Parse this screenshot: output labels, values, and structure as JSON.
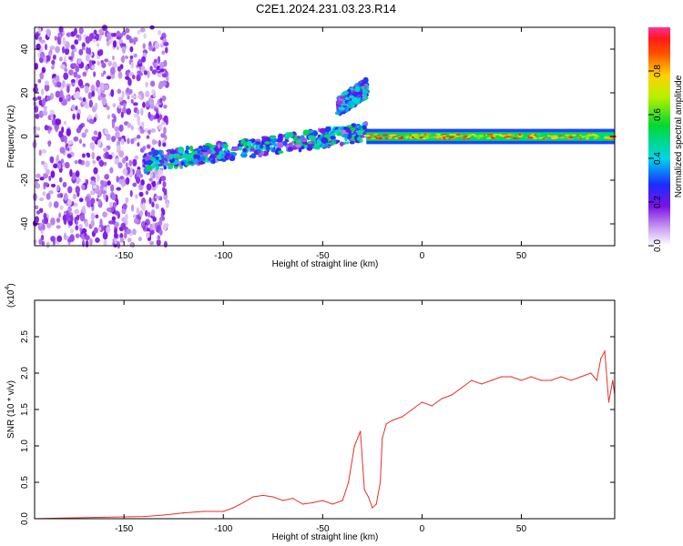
{
  "title": "C2E1.2024.231.03.23.R14",
  "chart_data": [
    {
      "type": "heatmap",
      "xlabel": "Height of straight line (km)",
      "ylabel": "Frequency (Hz)",
      "xlim": [
        -195,
        97
      ],
      "ylim": [
        -50,
        50
      ],
      "xticks": [
        -150,
        -100,
        -50,
        0,
        50
      ],
      "yticks": [
        -40,
        -20,
        0,
        20,
        40
      ],
      "colorbar": {
        "label": "Normalized spectral amplitude",
        "range": [
          0,
          1
        ],
        "ticks": [
          "0.0",
          "0.2",
          "0.4",
          "0.6",
          "0.8"
        ]
      },
      "features": [
        {
          "region": "noise",
          "x_range": [
            -195,
            -128
          ],
          "freq_range": [
            -50,
            50
          ],
          "amplitude": 0.12
        },
        {
          "region": "main-trace",
          "x_range": [
            -140,
            -28
          ],
          "freq_start": -12,
          "freq_end": 2,
          "amplitude": 0.35
        },
        {
          "region": "side-branch",
          "x_range": [
            -42,
            -28
          ],
          "freq_start": 14,
          "freq_end": 22,
          "amplitude": 0.3
        },
        {
          "region": "steady-trace",
          "x_range": [
            -28,
            97
          ],
          "freq": 0,
          "amplitude": 0.6
        }
      ]
    },
    {
      "type": "line",
      "xlabel": "Height of straight line (km)",
      "ylabel": "SNR (10 * v/v)",
      "y_multiplier": "(x10",
      "y_multiplier_exp": "4",
      "y_multiplier_close": ")",
      "xlim": [
        -195,
        97
      ],
      "ylim": [
        0,
        3.0
      ],
      "xticks": [
        -150,
        -100,
        -50,
        0,
        50
      ],
      "yticks": [
        "0.0",
        "0.5",
        "1.0",
        "1.5",
        "2.0",
        "2.5"
      ],
      "series": [
        {
          "color": "#e8302a",
          "x": [
            -195,
            -180,
            -160,
            -140,
            -130,
            -120,
            -110,
            -100,
            -95,
            -90,
            -85,
            -80,
            -75,
            -70,
            -65,
            -60,
            -55,
            -50,
            -45,
            -40,
            -37,
            -34,
            -31,
            -29,
            -27,
            -25,
            -23,
            -21,
            -20,
            -18,
            -15,
            -10,
            -5,
            0,
            5,
            10,
            15,
            20,
            25,
            30,
            35,
            40,
            45,
            50,
            55,
            60,
            65,
            70,
            75,
            80,
            85,
            88,
            90,
            92,
            94,
            96,
            97
          ],
          "y": [
            0.0,
            0.01,
            0.02,
            0.03,
            0.05,
            0.08,
            0.1,
            0.1,
            0.15,
            0.22,
            0.3,
            0.32,
            0.3,
            0.25,
            0.28,
            0.2,
            0.22,
            0.25,
            0.2,
            0.25,
            0.5,
            1.0,
            1.2,
            0.4,
            0.3,
            0.15,
            0.2,
            0.5,
            1.1,
            1.3,
            1.35,
            1.4,
            1.5,
            1.6,
            1.55,
            1.65,
            1.7,
            1.8,
            1.9,
            1.85,
            1.9,
            1.95,
            1.95,
            1.9,
            1.95,
            1.9,
            1.9,
            1.95,
            1.9,
            1.95,
            2.0,
            1.9,
            2.2,
            2.3,
            1.6,
            1.9,
            1.7
          ]
        }
      ]
    }
  ]
}
